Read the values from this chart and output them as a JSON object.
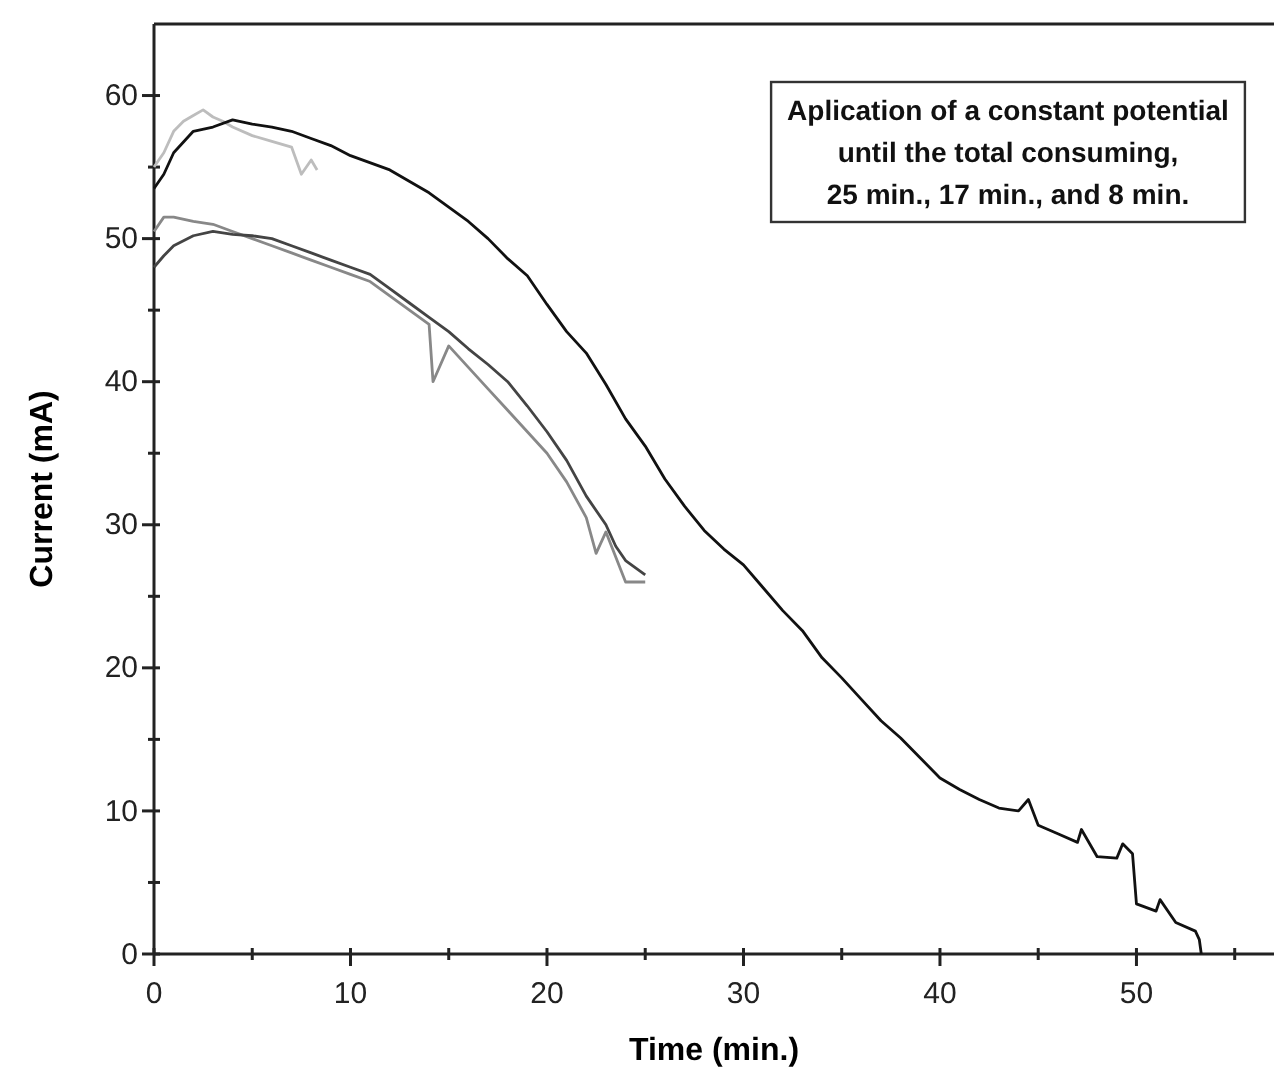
{
  "chart_data": {
    "type": "line",
    "xlabel": "Time (min.)",
    "ylabel": "Current (mA)",
    "xlim": [
      0,
      57
    ],
    "ylim": [
      0,
      65
    ],
    "xticks": [
      0,
      {
        "value": 5,
        "label": null
      },
      10,
      {
        "value": 15,
        "label": null
      },
      20,
      {
        "value": 25,
        "label": null
      },
      30,
      {
        "value": 35,
        "label": null
      },
      40,
      {
        "value": 45,
        "label": null
      },
      50,
      {
        "value": 55,
        "label": null
      }
    ],
    "yticks": [
      0,
      {
        "value": 5,
        "label": null
      },
      10,
      {
        "value": 15,
        "label": null
      },
      20,
      {
        "value": 25,
        "label": null
      },
      30,
      {
        "value": 35,
        "label": null
      },
      40,
      {
        "value": 45,
        "label": null
      },
      50,
      {
        "value": 55,
        "label": null
      },
      60
    ],
    "grid": false,
    "marker": "none",
    "line_style": "solid",
    "annotations": [
      "Aplication of a constant potential\nuntil the total consuming,\n25 min., 17 min., and 8 min."
    ],
    "series": [
      {
        "color": "#bdbdbd",
        "x": [
          0,
          0.5,
          1,
          1.5,
          2,
          2.5,
          3,
          3.5,
          4,
          5,
          6,
          7,
          7.5,
          8,
          8.3
        ],
        "values": [
          55,
          56,
          57.5,
          58.2,
          58.6,
          59,
          58.5,
          58.2,
          57.8,
          57.2,
          56.8,
          56.4,
          54.5,
          55.5,
          54.8
        ]
      },
      {
        "color": "#888888",
        "x": [
          0,
          0.5,
          1,
          2,
          3,
          4,
          5,
          6,
          7,
          8,
          9,
          10,
          11,
          12,
          13,
          14,
          14.2,
          15,
          16,
          17,
          18,
          19,
          20,
          21,
          22,
          22.5,
          23,
          24,
          25
        ],
        "values": [
          50.5,
          51.5,
          51.5,
          51.2,
          51,
          50.5,
          50,
          49.5,
          49,
          48.5,
          48,
          47.5,
          47,
          46,
          45,
          44,
          40,
          42.5,
          41,
          39.5,
          38,
          36.5,
          35,
          33,
          30.5,
          28,
          29.5,
          26,
          26
        ]
      },
      {
        "color": "#444444",
        "x": [
          0,
          0.5,
          1,
          2,
          3,
          4,
          5,
          6,
          7,
          8,
          9,
          10,
          11,
          12,
          13,
          14,
          15,
          16,
          17,
          18,
          19,
          20,
          21,
          22,
          23,
          23.5,
          24,
          25
        ],
        "values": [
          48,
          48.8,
          49.5,
          50.2,
          50.5,
          50.3,
          50.2,
          50,
          49.5,
          49,
          48.5,
          48,
          47.5,
          46.5,
          45.5,
          44.5,
          43.5,
          42.3,
          41.2,
          40,
          38.3,
          36.5,
          34.5,
          32,
          30,
          28.5,
          27.5,
          26.5
        ]
      },
      {
        "color": "#111111",
        "x": [
          0,
          0.5,
          1,
          2,
          3,
          4,
          5,
          6,
          7,
          8,
          9,
          10,
          12,
          14,
          15,
          16,
          17,
          18,
          19,
          20,
          21,
          22,
          23,
          24,
          25,
          26,
          27,
          28,
          29,
          30,
          31,
          32,
          33,
          34,
          35,
          36,
          37,
          38,
          39,
          40,
          41,
          42,
          43,
          44,
          44.5,
          45,
          46,
          47,
          47.2,
          48,
          49,
          49.3,
          49.8,
          50,
          51,
          51.2,
          52,
          53,
          53.2,
          53.3
        ],
        "values": [
          53.5,
          54.5,
          56,
          57.5,
          57.8,
          58.3,
          58,
          57.8,
          57.5,
          57,
          56.5,
          55.8,
          54.8,
          53.2,
          52.2,
          51.2,
          50,
          48.6,
          47.4,
          45.4,
          43.5,
          42,
          39.8,
          37.4,
          35.5,
          33.2,
          31.3,
          29.6,
          28.3,
          27.2,
          25.6,
          24,
          22.6,
          20.7,
          19.3,
          17.8,
          16.3,
          15.1,
          13.7,
          12.3,
          11.5,
          10.8,
          10.2,
          10,
          10.8,
          9,
          8.4,
          7.8,
          8.7,
          6.8,
          6.7,
          7.7,
          7,
          3.5,
          3,
          3.8,
          2.2,
          1.6,
          1,
          0
        ]
      }
    ]
  }
}
